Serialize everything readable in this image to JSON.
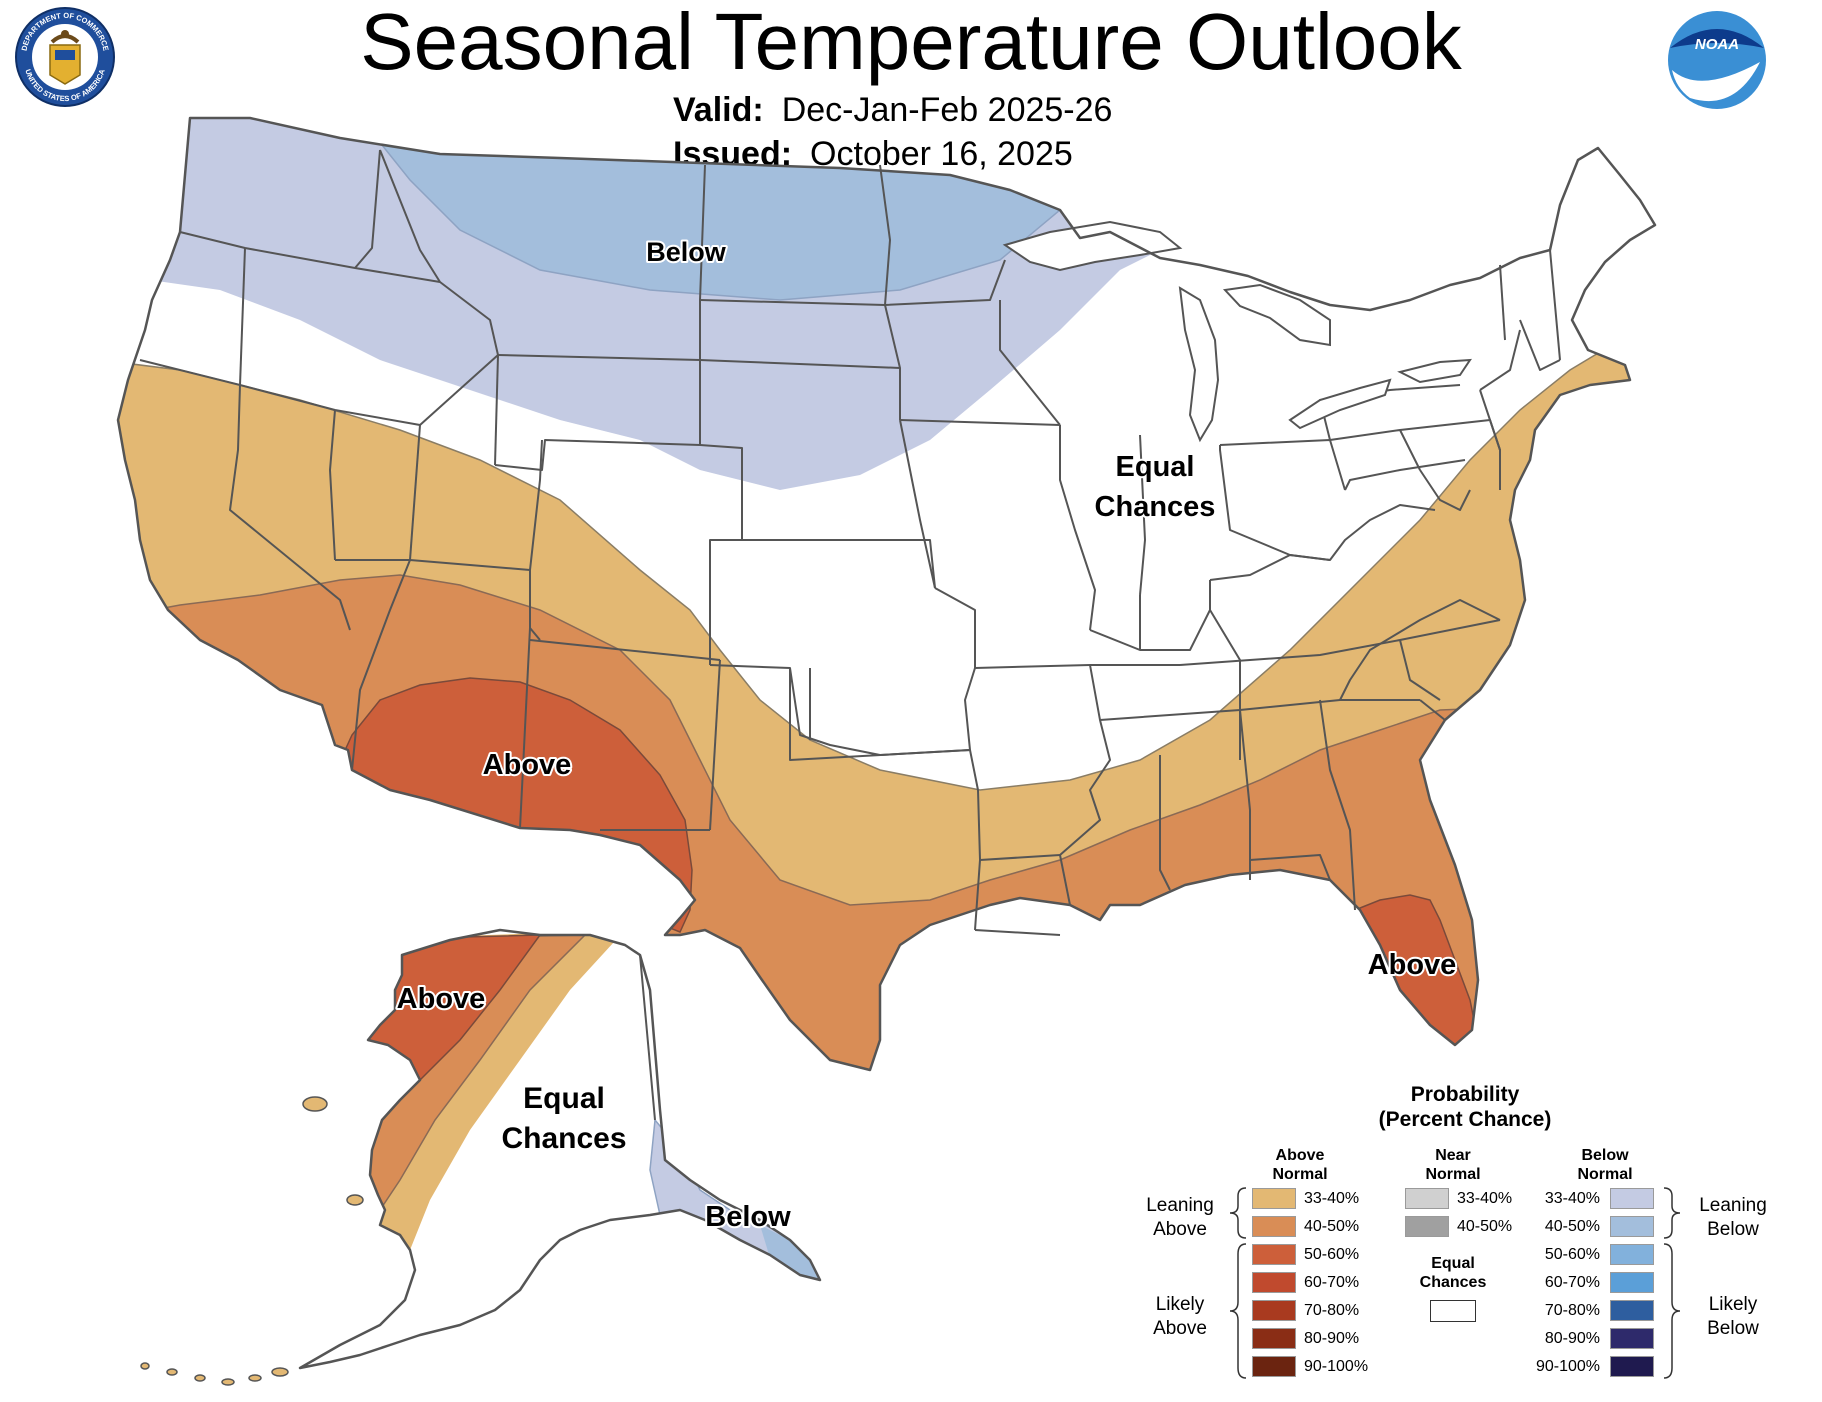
{
  "header": {
    "title": "Seasonal Temperature Outlook",
    "valid_label": "Valid:",
    "valid_value": "Dec-Jan-Feb 2025-26",
    "issued_label": "Issued:",
    "issued_value": "October 16, 2025"
  },
  "logos": {
    "doc_seal_text_top": "DEPARTMENT OF COMMERCE",
    "doc_seal_text_bottom": "UNITED STATES OF AMERICA",
    "noaa_text": "NOAA"
  },
  "map": {
    "colors": {
      "above_33_40": "#e3b873",
      "above_40_50": "#d98d56",
      "above_50_60": "#cd5f3a",
      "below_33_40": "#c4cbe3",
      "below_40_50": "#a3bedc",
      "equal": "#ffffff",
      "border": "#555555"
    },
    "labels": {
      "conus_below": "Below",
      "conus_equal_1": "Equal",
      "conus_equal_2": "Chances",
      "conus_above_sw": "Above",
      "conus_above_fl": "Above",
      "ak_above": "Above",
      "ak_equal_1": "Equal",
      "ak_equal_2": "Chances",
      "ak_below": "Below"
    }
  },
  "legend": {
    "title_1": "Probability",
    "title_2": "(Percent Chance)",
    "above_head_1": "Above",
    "above_head_2": "Normal",
    "near_head_1": "Near",
    "near_head_2": "Normal",
    "below_head_1": "Below",
    "below_head_2": "Normal",
    "leaning_above_1": "Leaning",
    "leaning_above_2": "Above",
    "likely_above_1": "Likely",
    "likely_above_2": "Above",
    "leaning_below_1": "Leaning",
    "leaning_below_2": "Below",
    "likely_below_1": "Likely",
    "likely_below_2": "Below",
    "equal_1": "Equal",
    "equal_2": "Chances",
    "above": [
      {
        "range": "33-40%",
        "color": "#e3b873"
      },
      {
        "range": "40-50%",
        "color": "#d98d56"
      },
      {
        "range": "50-60%",
        "color": "#cd5f3a"
      },
      {
        "range": "60-70%",
        "color": "#c04a2e"
      },
      {
        "range": "70-80%",
        "color": "#a93a1f"
      },
      {
        "range": "80-90%",
        "color": "#8a2d15"
      },
      {
        "range": "90-100%",
        "color": "#6b2410"
      }
    ],
    "near": [
      {
        "range": "33-40%",
        "color": "#d0d0d0"
      },
      {
        "range": "40-50%",
        "color": "#a0a0a0"
      }
    ],
    "below": [
      {
        "range": "33-40%",
        "color": "#c4cbe3"
      },
      {
        "range": "40-50%",
        "color": "#a3bedc"
      },
      {
        "range": "50-60%",
        "color": "#82b1dc"
      },
      {
        "range": "60-70%",
        "color": "#5b9fd8"
      },
      {
        "range": "70-80%",
        "color": "#2e5e9f"
      },
      {
        "range": "80-90%",
        "color": "#2e2a6b"
      },
      {
        "range": "90-100%",
        "color": "#1f1a4f"
      }
    ]
  }
}
